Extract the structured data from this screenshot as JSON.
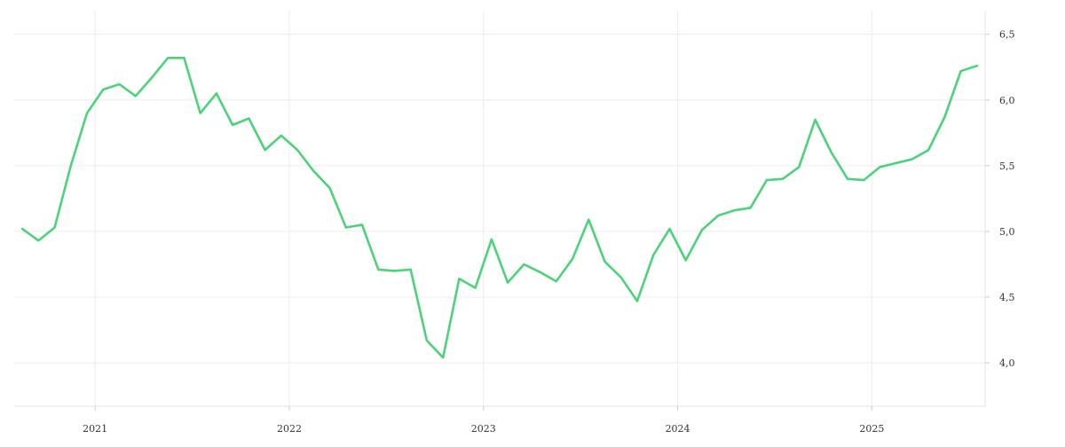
{
  "chart_data": {
    "type": "line",
    "title": "",
    "xlabel": "",
    "ylabel": "",
    "x_ticks": [
      "2021",
      "2022",
      "2023",
      "2024",
      "2025"
    ],
    "y_ticks": [
      "4,0",
      "4,5",
      "5,0",
      "5,5",
      "6,0",
      "6,5"
    ],
    "y_tick_values": [
      4.0,
      4.5,
      5.0,
      5.5,
      6.0,
      6.5
    ],
    "xlim": [
      "2020-08",
      "2025-08"
    ],
    "ylim": [
      3.67,
      6.68
    ],
    "grid": true,
    "series_color": "#4cd37a",
    "series": [
      {
        "x": [
          "2020-08",
          "2020-09",
          "2020-10",
          "2020-11",
          "2020-12",
          "2021-01",
          "2021-02",
          "2021-03",
          "2021-04",
          "2021-05",
          "2021-06",
          "2021-07",
          "2021-08",
          "2021-09",
          "2021-10",
          "2021-11",
          "2021-12",
          "2022-01",
          "2022-02",
          "2022-03",
          "2022-04",
          "2022-05",
          "2022-06",
          "2022-07",
          "2022-08",
          "2022-09",
          "2022-10",
          "2022-11",
          "2022-12",
          "2023-01",
          "2023-02",
          "2023-03",
          "2023-04",
          "2023-05",
          "2023-06",
          "2023-07",
          "2023-08",
          "2023-09",
          "2023-10",
          "2023-11",
          "2023-12",
          "2024-01",
          "2024-02",
          "2024-03",
          "2024-04",
          "2024-05",
          "2024-06",
          "2024-07",
          "2024-08",
          "2024-09",
          "2024-10",
          "2024-11",
          "2024-12",
          "2025-01",
          "2025-02",
          "2025-03",
          "2025-04",
          "2025-05",
          "2025-06",
          "2025-07"
        ],
        "y": [
          5.02,
          4.93,
          5.03,
          5.5,
          5.9,
          6.08,
          6.12,
          6.03,
          6.17,
          6.32,
          6.32,
          5.9,
          6.05,
          5.81,
          5.86,
          5.62,
          5.73,
          5.62,
          5.46,
          5.33,
          5.03,
          5.05,
          4.71,
          4.7,
          4.71,
          4.17,
          4.04,
          4.64,
          4.57,
          4.94,
          4.61,
          4.75,
          4.69,
          4.62,
          4.79,
          5.09,
          4.77,
          4.65,
          4.47,
          4.82,
          5.02,
          4.78,
          5.01,
          5.12,
          5.16,
          5.18,
          5.39,
          5.4,
          5.49,
          5.85,
          5.6,
          5.4,
          5.39,
          5.49,
          5.52,
          5.55,
          5.62,
          5.87,
          6.22,
          6.26
        ]
      }
    ]
  }
}
